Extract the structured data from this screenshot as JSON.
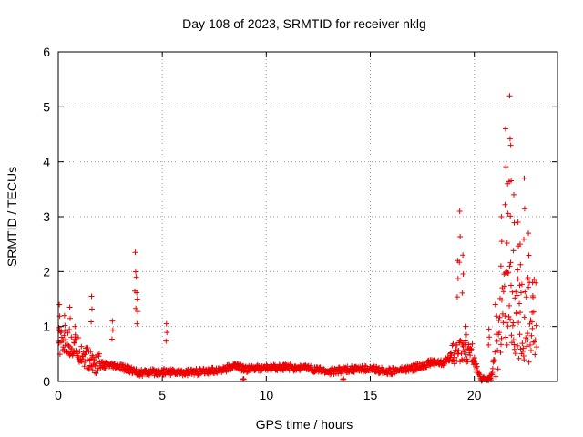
{
  "chart_data": {
    "type": "scatter",
    "title": "Day 108 of 2023, SRMTID for receiver nklg",
    "xlabel": "GPS time / hours",
    "ylabel": "SRMTID / TECUs",
    "xlim": [
      0,
      24
    ],
    "ylim": [
      0,
      6
    ],
    "x_ticks": [
      0,
      5,
      10,
      15,
      20
    ],
    "y_ticks": [
      0,
      1,
      2,
      3,
      4,
      5,
      6
    ],
    "grid": true,
    "marker": "+",
    "colors": {
      "marker": "#ee0000",
      "grid": "#a0a0a0",
      "axis": "#000000"
    },
    "series": [
      {
        "name": "SRMTID",
        "anchors": [
          [
            0.0,
            0.7
          ],
          [
            0.5,
            0.65
          ],
          [
            1.0,
            0.55
          ],
          [
            1.5,
            0.35
          ],
          [
            2.0,
            0.3
          ],
          [
            3.0,
            0.25
          ],
          [
            4.0,
            0.15
          ],
          [
            5.0,
            0.17
          ],
          [
            6.0,
            0.16
          ],
          [
            7.0,
            0.17
          ],
          [
            8.0,
            0.22
          ],
          [
            8.5,
            0.28
          ],
          [
            9.0,
            0.22
          ],
          [
            10.0,
            0.24
          ],
          [
            11.0,
            0.25
          ],
          [
            12.0,
            0.24
          ],
          [
            13.0,
            0.17
          ],
          [
            14.0,
            0.22
          ],
          [
            15.0,
            0.22
          ],
          [
            16.0,
            0.18
          ],
          [
            17.0,
            0.23
          ],
          [
            17.5,
            0.28
          ],
          [
            18.0,
            0.35
          ],
          [
            18.5,
            0.33
          ],
          [
            19.0,
            0.5
          ],
          [
            19.5,
            0.55
          ],
          [
            20.0,
            0.45
          ],
          [
            20.3,
            0.02
          ],
          [
            20.8,
            0.05
          ],
          [
            21.0,
            0.5
          ],
          [
            21.3,
            1.1
          ],
          [
            21.6,
            1.3
          ],
          [
            22.0,
            1.2
          ],
          [
            22.5,
            1.1
          ],
          [
            23.0,
            1.0
          ]
        ],
        "spikes": [
          [
            0.05,
            1.4
          ],
          [
            0.3,
            1.2
          ],
          [
            0.55,
            1.35
          ],
          [
            0.8,
            1.0
          ],
          [
            1.6,
            1.55
          ],
          [
            2.6,
            1.1
          ],
          [
            3.7,
            2.35
          ],
          [
            3.75,
            1.9
          ],
          [
            3.8,
            1.5
          ],
          [
            5.2,
            1.05
          ],
          [
            8.9,
            0.05
          ],
          [
            13.7,
            0.05
          ],
          [
            19.2,
            2.2
          ],
          [
            19.3,
            3.1
          ],
          [
            19.45,
            2.3
          ],
          [
            19.6,
            1.0
          ],
          [
            20.7,
            0.95
          ],
          [
            21.3,
            3.0
          ],
          [
            21.5,
            4.6
          ],
          [
            21.6,
            3.6
          ],
          [
            21.7,
            5.2
          ],
          [
            21.75,
            4.3
          ],
          [
            21.9,
            3.4
          ],
          [
            22.1,
            2.9
          ],
          [
            22.2,
            2.5
          ],
          [
            22.4,
            3.7
          ],
          [
            22.6,
            2.7
          ],
          [
            22.8,
            1.8
          ]
        ]
      }
    ]
  }
}
